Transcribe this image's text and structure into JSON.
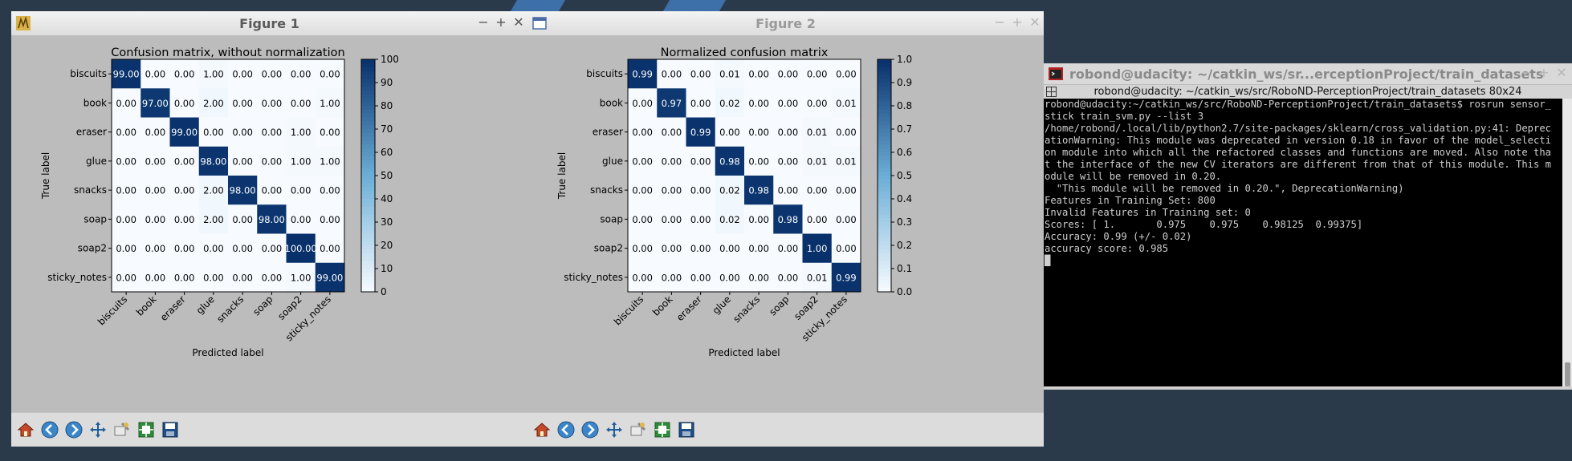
{
  "colors": {
    "matrix_dark": "#08306b",
    "matrix_light": "#f7fbff"
  },
  "windows": [
    {
      "title": "Figure 1",
      "chart_data": {
        "type": "heatmap",
        "title": "Confusion matrix, without normalization",
        "xlabel": "Predicted label",
        "ylabel": "True label",
        "labels": [
          "biscuits",
          "book",
          "eraser",
          "glue",
          "snacks",
          "soap",
          "soap2",
          "sticky_notes"
        ],
        "values": [
          [
            99,
            0,
            0,
            1,
            0,
            0,
            0,
            0
          ],
          [
            0,
            97,
            0,
            2,
            0,
            0,
            0,
            1
          ],
          [
            0,
            0,
            99,
            0,
            0,
            0,
            1,
            0
          ],
          [
            0,
            0,
            0,
            98,
            0,
            0,
            1,
            1
          ],
          [
            0,
            0,
            0,
            2,
            98,
            0,
            0,
            0
          ],
          [
            0,
            0,
            0,
            2,
            0,
            98,
            0,
            0
          ],
          [
            0,
            0,
            0,
            0,
            0,
            0,
            100,
            0
          ],
          [
            0,
            0,
            0,
            0,
            0,
            0,
            1,
            99
          ]
        ],
        "decimals": 2,
        "vmin": 0,
        "vmax": 100,
        "colorbar_ticks": [
          "0",
          "10",
          "20",
          "30",
          "40",
          "50",
          "60",
          "70",
          "80",
          "90",
          "100"
        ]
      }
    },
    {
      "title": "Figure 2",
      "chart_data": {
        "type": "heatmap",
        "title": "Normalized confusion matrix",
        "xlabel": "Predicted label",
        "ylabel": "True label",
        "labels": [
          "biscuits",
          "book",
          "eraser",
          "glue",
          "snacks",
          "soap",
          "soap2",
          "sticky_notes"
        ],
        "values": [
          [
            0.99,
            0,
            0,
            0.01,
            0,
            0,
            0,
            0
          ],
          [
            0,
            0.97,
            0,
            0.02,
            0,
            0,
            0,
            0.01
          ],
          [
            0,
            0,
            0.99,
            0,
            0,
            0,
            0.01,
            0
          ],
          [
            0,
            0,
            0,
            0.98,
            0,
            0,
            0.01,
            0.01
          ],
          [
            0,
            0,
            0,
            0.02,
            0.98,
            0,
            0,
            0
          ],
          [
            0,
            0,
            0,
            0.02,
            0,
            0.98,
            0,
            0
          ],
          [
            0,
            0,
            0,
            0,
            0,
            0,
            1.0,
            0
          ],
          [
            0,
            0,
            0,
            0,
            0,
            0,
            0.01,
            0.99
          ]
        ],
        "decimals": 2,
        "vmin": 0,
        "vmax": 1,
        "colorbar_ticks": [
          "0.0",
          "0.1",
          "0.2",
          "0.3",
          "0.4",
          "0.5",
          "0.6",
          "0.7",
          "0.8",
          "0.9",
          "1.0"
        ]
      }
    }
  ],
  "toolbar_icons": [
    "home-icon",
    "back-icon",
    "forward-icon",
    "pan-icon",
    "zoom-icon",
    "subplots-icon",
    "save-icon"
  ],
  "terminal": {
    "window_title": "robond@udacity: ~/catkin_ws/sr...erceptionProject/train_datasets",
    "tab_title": "robond@udacity: ~/catkin_ws/src/RoboND-PerceptionProject/train_datasets 80x24",
    "lines": [
      "robond@udacity:~/catkin_ws/src/RoboND-PerceptionProject/train_datasets$ rosrun sensor_stick train_svm.py --list 3",
      "/home/robond/.local/lib/python2.7/site-packages/sklearn/cross_validation.py:41: DeprecationWarning: This module was deprecated in version 0.18 in favor of the model_selection module into which all the refactored classes and functions are moved. Also note that the interface of the new CV iterators are different from that of this module. This module will be removed in 0.20.",
      "  \"This module will be removed in 0.20.\", DeprecationWarning)",
      "Features in Training Set: 800",
      "Invalid Features in Training set: 0",
      "Scores: [ 1.       0.975    0.975    0.98125  0.99375]",
      "Accuracy: 0.99 (+/- 0.02)",
      "accuracy score: 0.985"
    ]
  }
}
